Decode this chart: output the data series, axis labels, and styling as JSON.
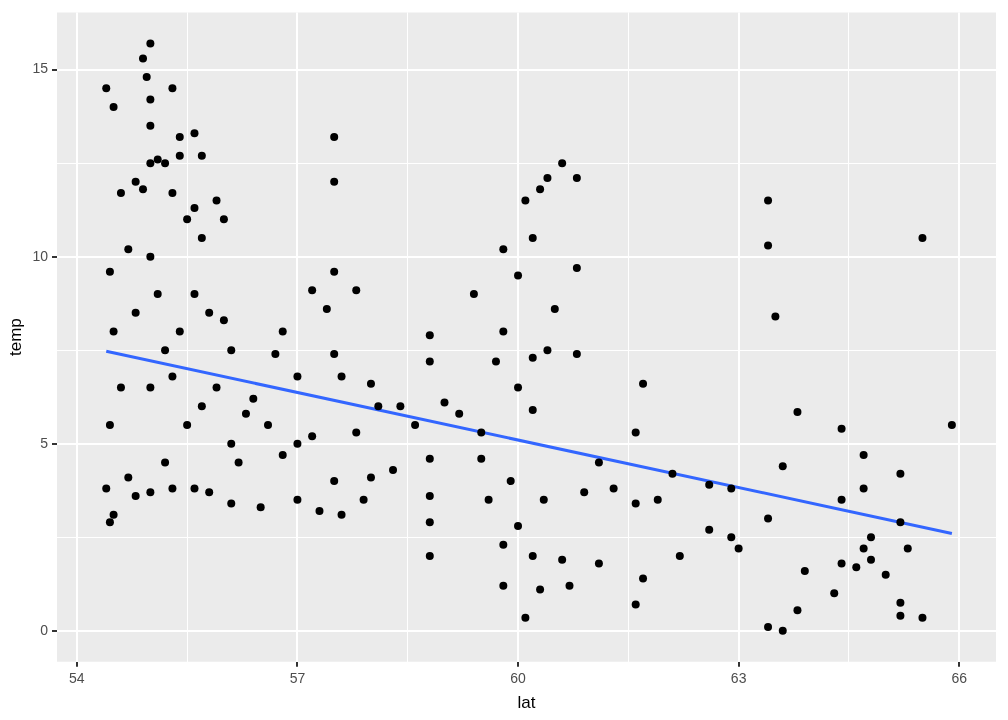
{
  "chart_data": {
    "type": "scatter",
    "xlabel": "lat",
    "ylabel": "temp",
    "xlim": [
      53.73,
      66.5
    ],
    "ylim": [
      -0.83,
      16.53
    ],
    "xticks": [
      54,
      {
        "value": 55.5,
        "label": null
      },
      57,
      {
        "value": 58.5,
        "label": null
      },
      60,
      {
        "value": 61.5,
        "label": null
      },
      63,
      {
        "value": 64.5,
        "label": null
      },
      66
    ],
    "yticks": [
      0,
      {
        "value": 2.5,
        "label": null
      },
      5,
      {
        "value": 7.5,
        "label": null
      },
      10,
      {
        "value": 12.5,
        "label": null
      },
      15
    ],
    "grid": true,
    "legend": false,
    "marker": "circle",
    "series": [
      {
        "type": "scatter",
        "color": "#000000",
        "x": [
          54.4,
          54.5,
          54.45,
          54.5,
          54.45,
          54.4,
          54.45,
          54.5,
          54.6,
          54.6,
          54.7,
          54.7,
          54.8,
          54.8,
          54.8,
          54.9,
          54.95,
          55.0,
          55.0,
          55.0,
          55.0,
          54.9,
          55.0,
          55.0,
          55.0,
          55.1,
          55.1,
          55.2,
          55.2,
          55.2,
          55.3,
          55.3,
          55.3,
          55.3,
          55.4,
          55.4,
          55.4,
          55.5,
          55.5,
          55.6,
          55.6,
          55.6,
          55.6,
          55.7,
          55.7,
          55.7,
          55.8,
          55.8,
          55.9,
          55.9,
          56.0,
          56.0,
          56.1,
          56.1,
          56.1,
          56.2,
          56.3,
          56.4,
          56.5,
          56.6,
          56.7,
          56.8,
          56.8,
          57.0,
          57.0,
          57.0,
          57.2,
          57.2,
          57.3,
          57.4,
          57.5,
          57.5,
          57.5,
          57.5,
          57.5,
          57.6,
          57.6,
          57.8,
          57.8,
          57.9,
          58.0,
          58.0,
          58.1,
          58.3,
          58.4,
          58.6,
          58.8,
          58.8,
          58.8,
          58.8,
          58.8,
          58.8,
          59.0,
          59.2,
          59.4,
          59.5,
          59.5,
          59.6,
          59.7,
          59.8,
          59.8,
          59.8,
          59.8,
          59.9,
          60.0,
          60.0,
          60.0,
          60.1,
          60.1,
          60.2,
          60.2,
          60.2,
          60.2,
          60.3,
          60.3,
          60.35,
          60.4,
          60.4,
          60.5,
          60.6,
          60.6,
          60.7,
          60.8,
          60.8,
          60.8,
          60.9,
          61.1,
          61.1,
          61.3,
          61.6,
          61.6,
          61.7,
          61.7,
          61.6,
          61.9,
          62.1,
          62.2,
          62.6,
          62.6,
          62.9,
          62.9,
          63.0,
          63.4,
          63.4,
          63.4,
          63.4,
          63.5,
          63.6,
          63.6,
          63.8,
          63.8,
          63.9,
          64.3,
          64.4,
          64.4,
          64.4,
          64.6,
          64.7,
          64.7,
          64.7,
          64.8,
          64.8,
          65.0,
          65.2,
          65.2,
          65.2,
          65.2,
          65.3,
          65.5,
          65.5,
          65.9
        ],
        "values": [
          14.5,
          14.0,
          9.6,
          8.0,
          5.5,
          3.8,
          2.9,
          3.1,
          11.7,
          6.5,
          10.2,
          4.1,
          12.0,
          8.5,
          3.6,
          15.3,
          14.8,
          15.7,
          14.2,
          13.5,
          12.5,
          11.8,
          10.0,
          6.5,
          3.7,
          12.6,
          9.0,
          12.5,
          7.5,
          4.5,
          14.5,
          11.7,
          6.8,
          3.8,
          13.2,
          12.7,
          8.0,
          11.0,
          5.5,
          13.3,
          11.3,
          9.0,
          3.8,
          12.7,
          10.5,
          6.0,
          8.5,
          3.7,
          11.5,
          6.5,
          11.0,
          8.3,
          7.5,
          5.0,
          3.4,
          4.5,
          5.8,
          6.2,
          3.3,
          5.5,
          7.4,
          8.0,
          4.7,
          6.8,
          5.0,
          3.5,
          9.1,
          5.2,
          3.2,
          8.6,
          13.2,
          12.0,
          9.6,
          7.4,
          4.0,
          3.1,
          6.8,
          9.1,
          5.3,
          3.5,
          6.6,
          4.1,
          6.0,
          4.3,
          6.0,
          5.5,
          7.9,
          7.2,
          3.6,
          2.9,
          2.0,
          4.6,
          6.1,
          5.8,
          9.0,
          5.3,
          4.6,
          3.5,
          7.2,
          10.2,
          8.0,
          2.3,
          1.2,
          4.0,
          9.5,
          6.5,
          2.8,
          0.35,
          11.5,
          10.5,
          7.3,
          5.9,
          2.0,
          11.8,
          1.1,
          3.5,
          12.1,
          7.5,
          8.6,
          12.5,
          1.9,
          1.2,
          12.1,
          9.7,
          7.4,
          3.7,
          4.5,
          1.8,
          3.8,
          3.4,
          5.3,
          6.6,
          1.4,
          0.7,
          3.5,
          4.2,
          2.0,
          3.9,
          2.7,
          3.8,
          2.5,
          2.2,
          11.5,
          10.3,
          3.0,
          0.1,
          8.4,
          4.4,
          0.0,
          5.85,
          0.55,
          1.6,
          1.0,
          5.4,
          3.5,
          1.8,
          1.7,
          4.7,
          3.8,
          2.2,
          2.5,
          1.9,
          1.5,
          4.2,
          2.9,
          0.75,
          0.4,
          2.2,
          10.5,
          0.35,
          5.5
        ]
      },
      {
        "type": "line",
        "color": "#3366ff",
        "marker": "none",
        "x": [
          54.4,
          65.9
        ],
        "values": [
          7.47,
          2.6
        ]
      }
    ]
  }
}
